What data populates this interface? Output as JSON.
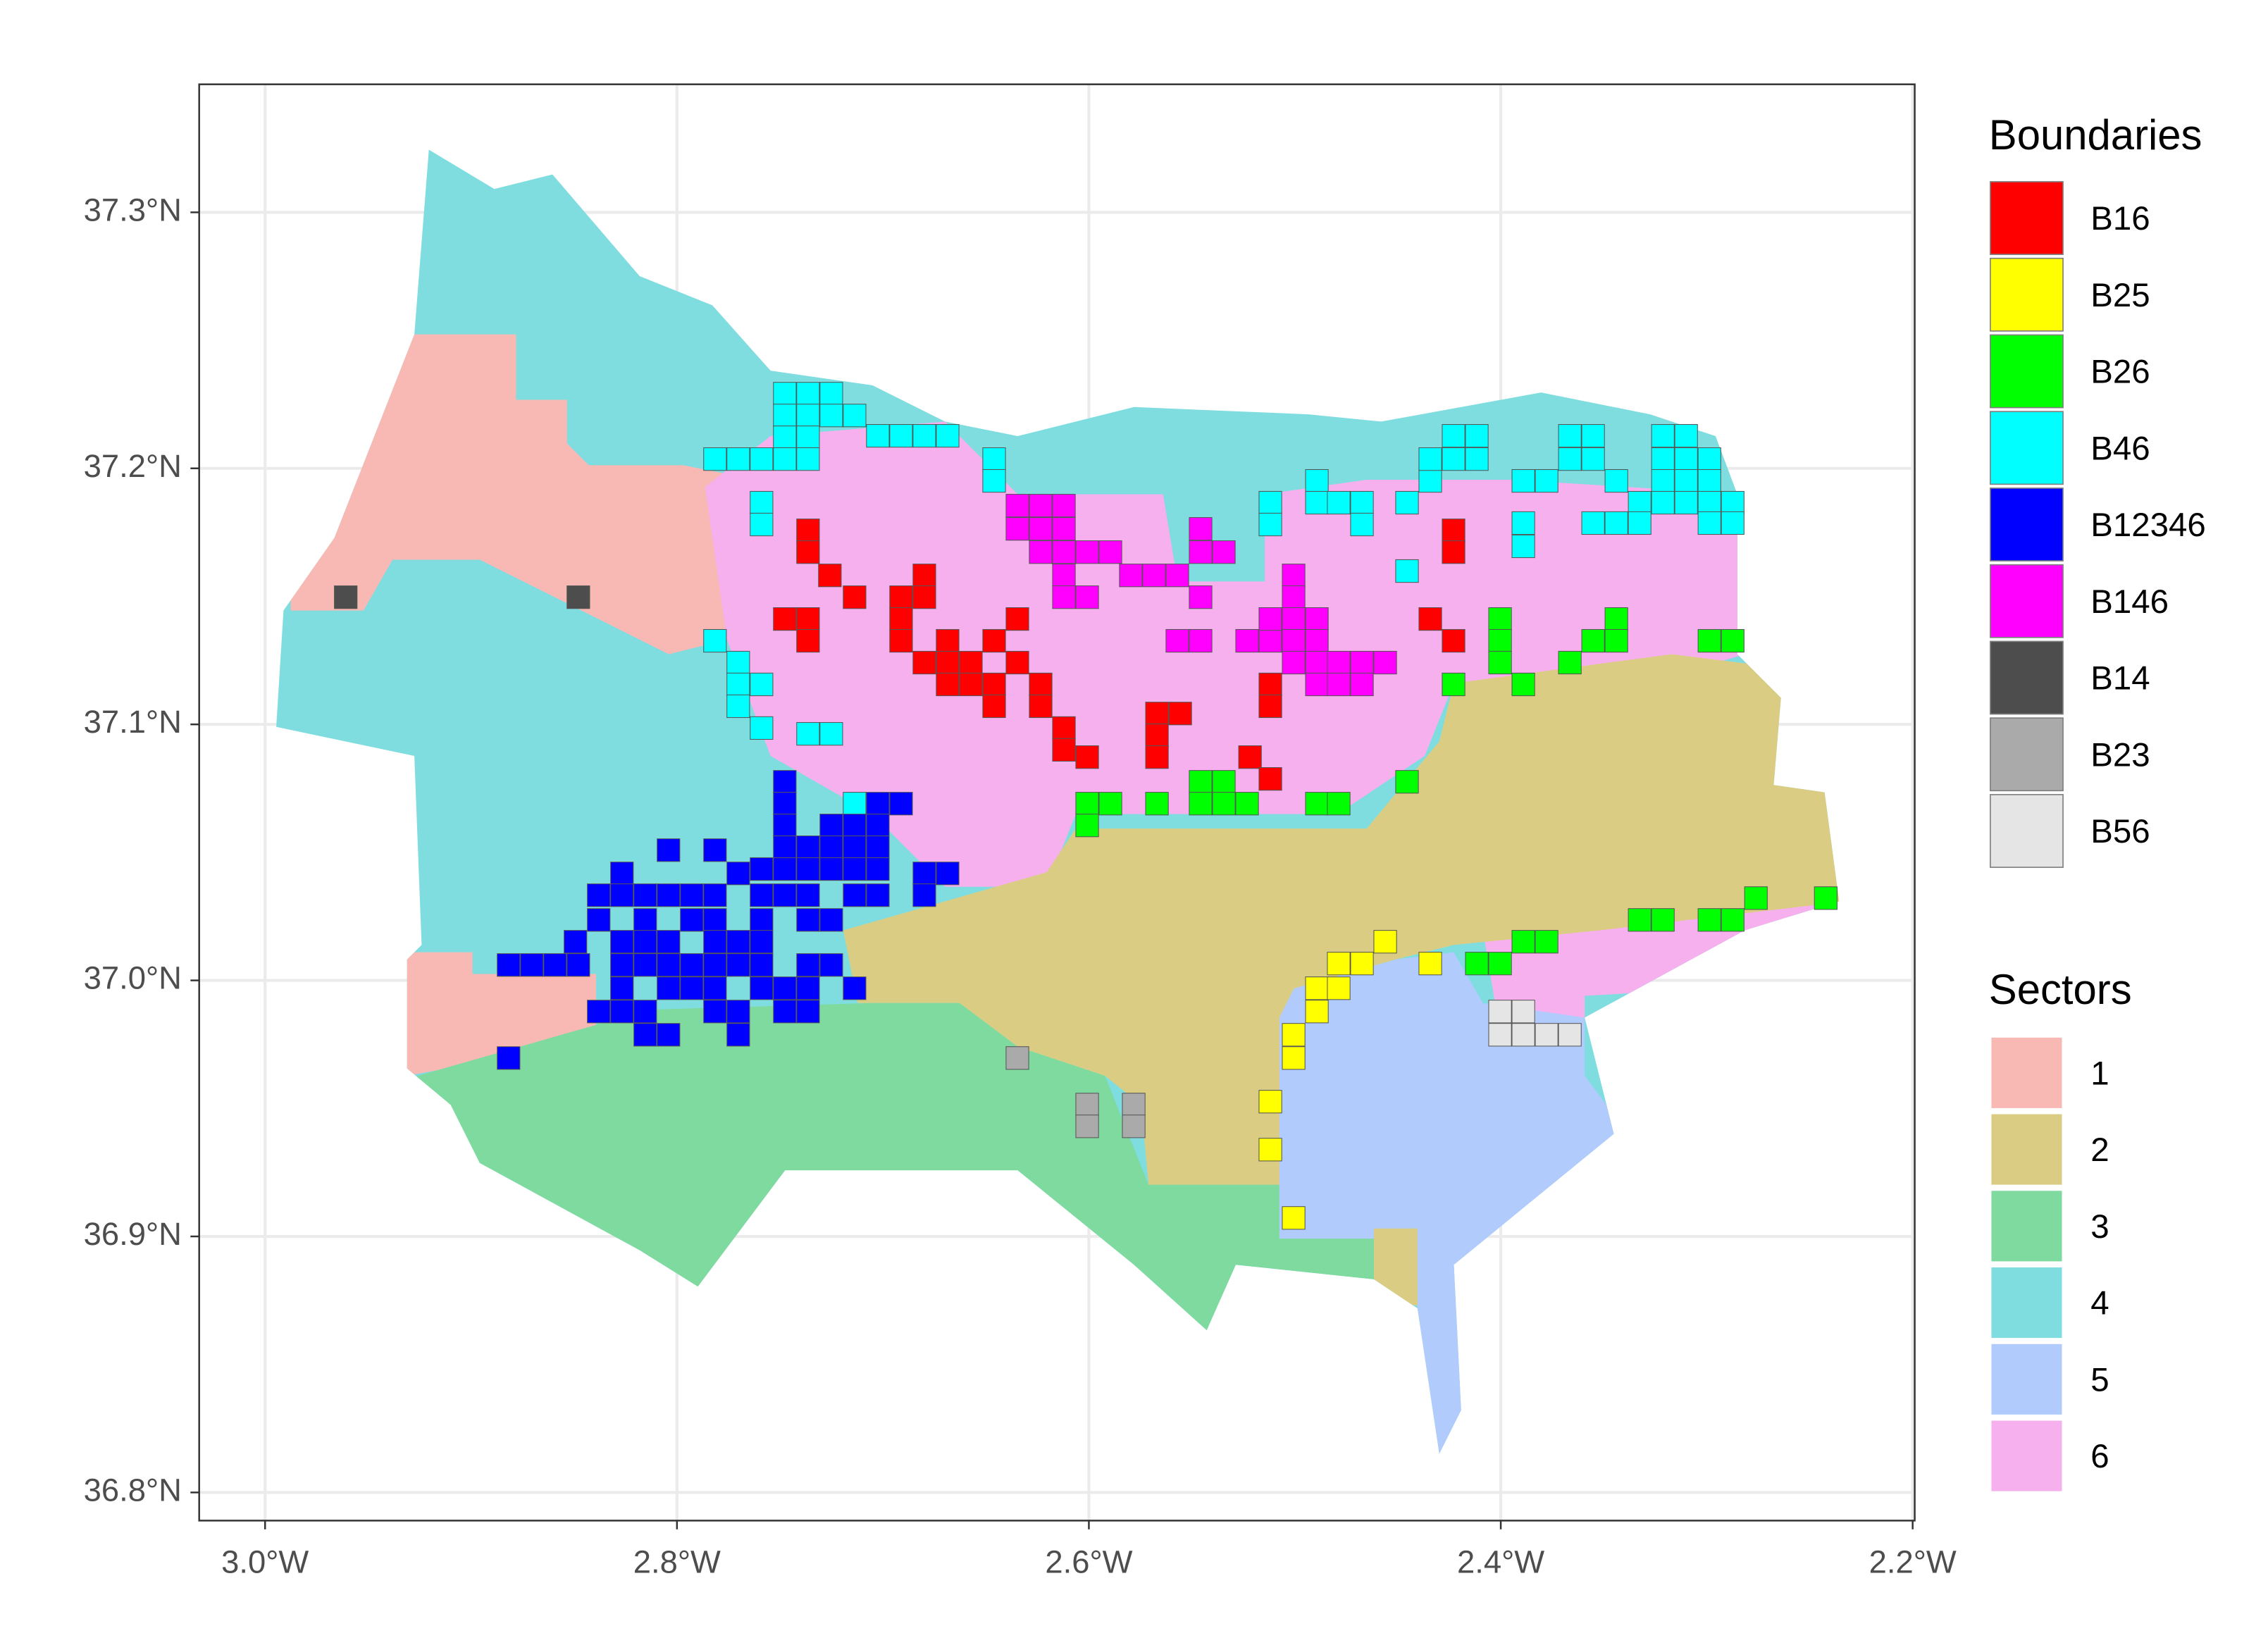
{
  "map": {
    "xlim": [
      -3.032,
      -2.199
    ],
    "ylim": [
      36.789,
      37.35
    ],
    "xticks": [
      {
        "value": -3.0,
        "label": "3.0°W"
      },
      {
        "value": -2.8,
        "label": "2.8°W"
      },
      {
        "value": -2.6,
        "label": "2.6°W"
      },
      {
        "value": -2.4,
        "label": "2.4°W"
      },
      {
        "value": -2.2,
        "label": "2.2°W"
      }
    ],
    "yticks": [
      {
        "value": 36.8,
        "label": "36.8°N"
      },
      {
        "value": 36.9,
        "label": "36.9°N"
      },
      {
        "value": 37.0,
        "label": "37.0°N"
      },
      {
        "value": 37.1,
        "label": "37.1°N"
      },
      {
        "value": 37.2,
        "label": "37.2°N"
      },
      {
        "value": 37.3,
        "label": "37.3°N"
      }
    ],
    "grid": true,
    "legends": [
      {
        "title": "Boundaries",
        "items": [
          {
            "label": "B16",
            "color": "#ff0000"
          },
          {
            "label": "B25",
            "color": "#ffff00"
          },
          {
            "label": "B26",
            "color": "#00ff00"
          },
          {
            "label": "B46",
            "color": "#00ffff"
          },
          {
            "label": "B12346",
            "color": "#0000ff"
          },
          {
            "label": "B146",
            "color": "#ff00ff"
          },
          {
            "label": "B14",
            "color": "#4d4d4d"
          },
          {
            "label": "B23",
            "color": "#aaaaaa"
          },
          {
            "label": "B56",
            "color": "#e5e5e5"
          }
        ]
      },
      {
        "title": "Sectors",
        "items": [
          {
            "label": "1",
            "color": "#f8b9b4"
          },
          {
            "label": "2",
            "color": "#dacd83"
          },
          {
            "label": "3",
            "color": "#7fdaa0"
          },
          {
            "label": "4",
            "color": "#7fdde0"
          },
          {
            "label": "5",
            "color": "#b0cbfc"
          },
          {
            "label": "6",
            "color": "#f6b0ed"
          }
        ]
      }
    ]
  }
}
